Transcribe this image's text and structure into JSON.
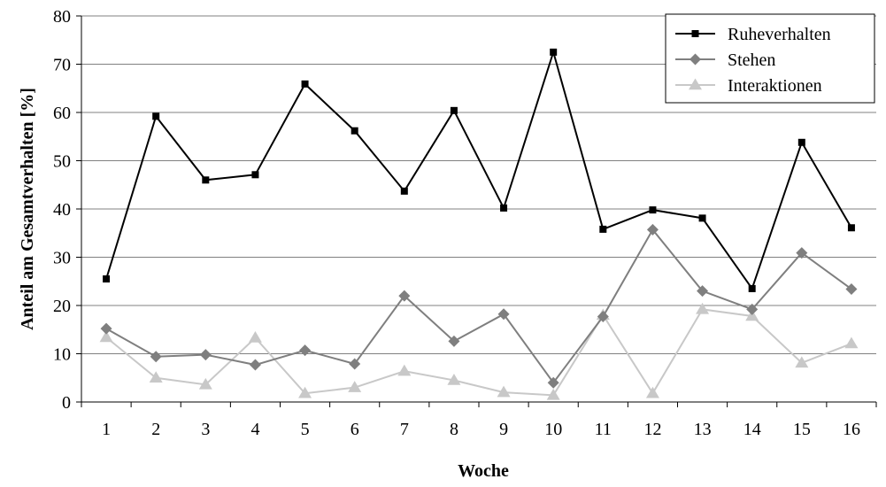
{
  "chart_data": {
    "type": "line",
    "title": "",
    "xlabel": "Woche",
    "ylabel": "Anteil am Gesamtverhalten [%]",
    "categories": [
      "1",
      "2",
      "3",
      "4",
      "5",
      "6",
      "7",
      "8",
      "9",
      "10",
      "11",
      "12",
      "13",
      "14",
      "15",
      "16"
    ],
    "ylim": [
      0,
      80
    ],
    "yticks": [
      "0",
      "10",
      "20",
      "30",
      "40",
      "50",
      "60",
      "70",
      "80"
    ],
    "grid": true,
    "legend_position": "top-right",
    "series": [
      {
        "name": "Ruheverhalten",
        "marker": "square",
        "color": "#000000",
        "values": [
          25.5,
          59.2,
          46.0,
          47.1,
          65.9,
          56.2,
          43.7,
          60.4,
          40.2,
          72.5,
          35.8,
          39.8,
          38.1,
          23.5,
          53.8,
          36.1
        ]
      },
      {
        "name": "Stehen",
        "marker": "diamond",
        "color": "#7f7f7f",
        "values": [
          15.2,
          9.4,
          9.8,
          7.7,
          10.7,
          7.9,
          22.0,
          12.6,
          18.2,
          4.0,
          17.7,
          35.7,
          23.0,
          19.2,
          30.9,
          23.4
        ]
      },
      {
        "name": "Interaktionen",
        "marker": "triangle",
        "color": "#c8c8c8",
        "values": [
          13.4,
          5.0,
          3.6,
          13.3,
          1.8,
          3.0,
          6.4,
          4.5,
          2.0,
          1.4,
          18.0,
          1.8,
          19.2,
          17.8,
          8.1,
          12.1
        ]
      }
    ]
  }
}
